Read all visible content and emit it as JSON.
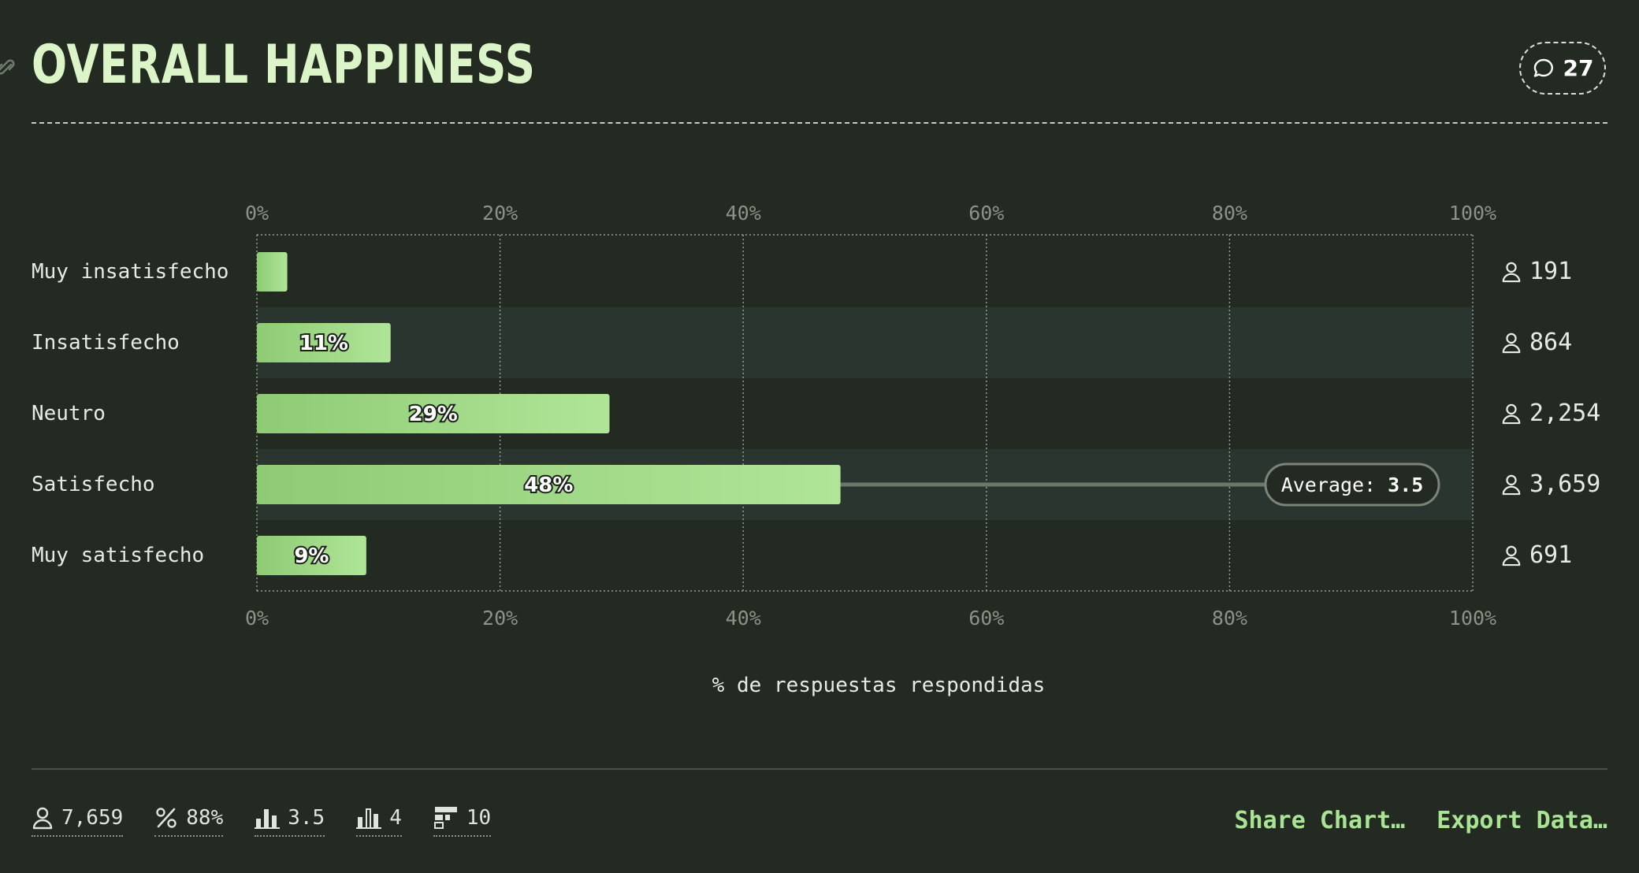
{
  "header": {
    "title": "OVERALL HAPPINESS",
    "comments_count": "27"
  },
  "chart_data": {
    "type": "bar",
    "orientation": "horizontal",
    "categories": [
      "Muy insatisfecho",
      "Insatisfecho",
      "Neutro",
      "Satisfecho",
      "Muy satisfecho"
    ],
    "values": [
      2.5,
      11,
      29,
      48,
      9
    ],
    "value_labels": [
      "",
      "11%",
      "29%",
      "48%",
      "9%"
    ],
    "counts": [
      "191",
      "864",
      "2,254",
      "3,659",
      "691"
    ],
    "xlim": [
      0,
      100
    ],
    "x_ticks": [
      "0%",
      "20%",
      "40%",
      "60%",
      "80%",
      "100%"
    ],
    "xlabel": "% de respuestas respondidas",
    "grid": true,
    "average": {
      "label": "Average:",
      "value": "3.5",
      "row": 3
    },
    "colors": {
      "bar_start": "#8ecb74",
      "bar_end": "#b0e598",
      "band": "#2b3530",
      "grid": "#9aa197"
    }
  },
  "footer": {
    "stats": [
      {
        "icon": "person-icon",
        "value": "7,659"
      },
      {
        "icon": "percent-icon",
        "value": "88%"
      },
      {
        "icon": "average-bars-icon",
        "value": "3.5"
      },
      {
        "icon": "median-bars-icon",
        "value": "4"
      },
      {
        "icon": "histogram-icon",
        "value": "10"
      }
    ],
    "share_label": "Share Chart…",
    "export_label": "Export Data…"
  }
}
